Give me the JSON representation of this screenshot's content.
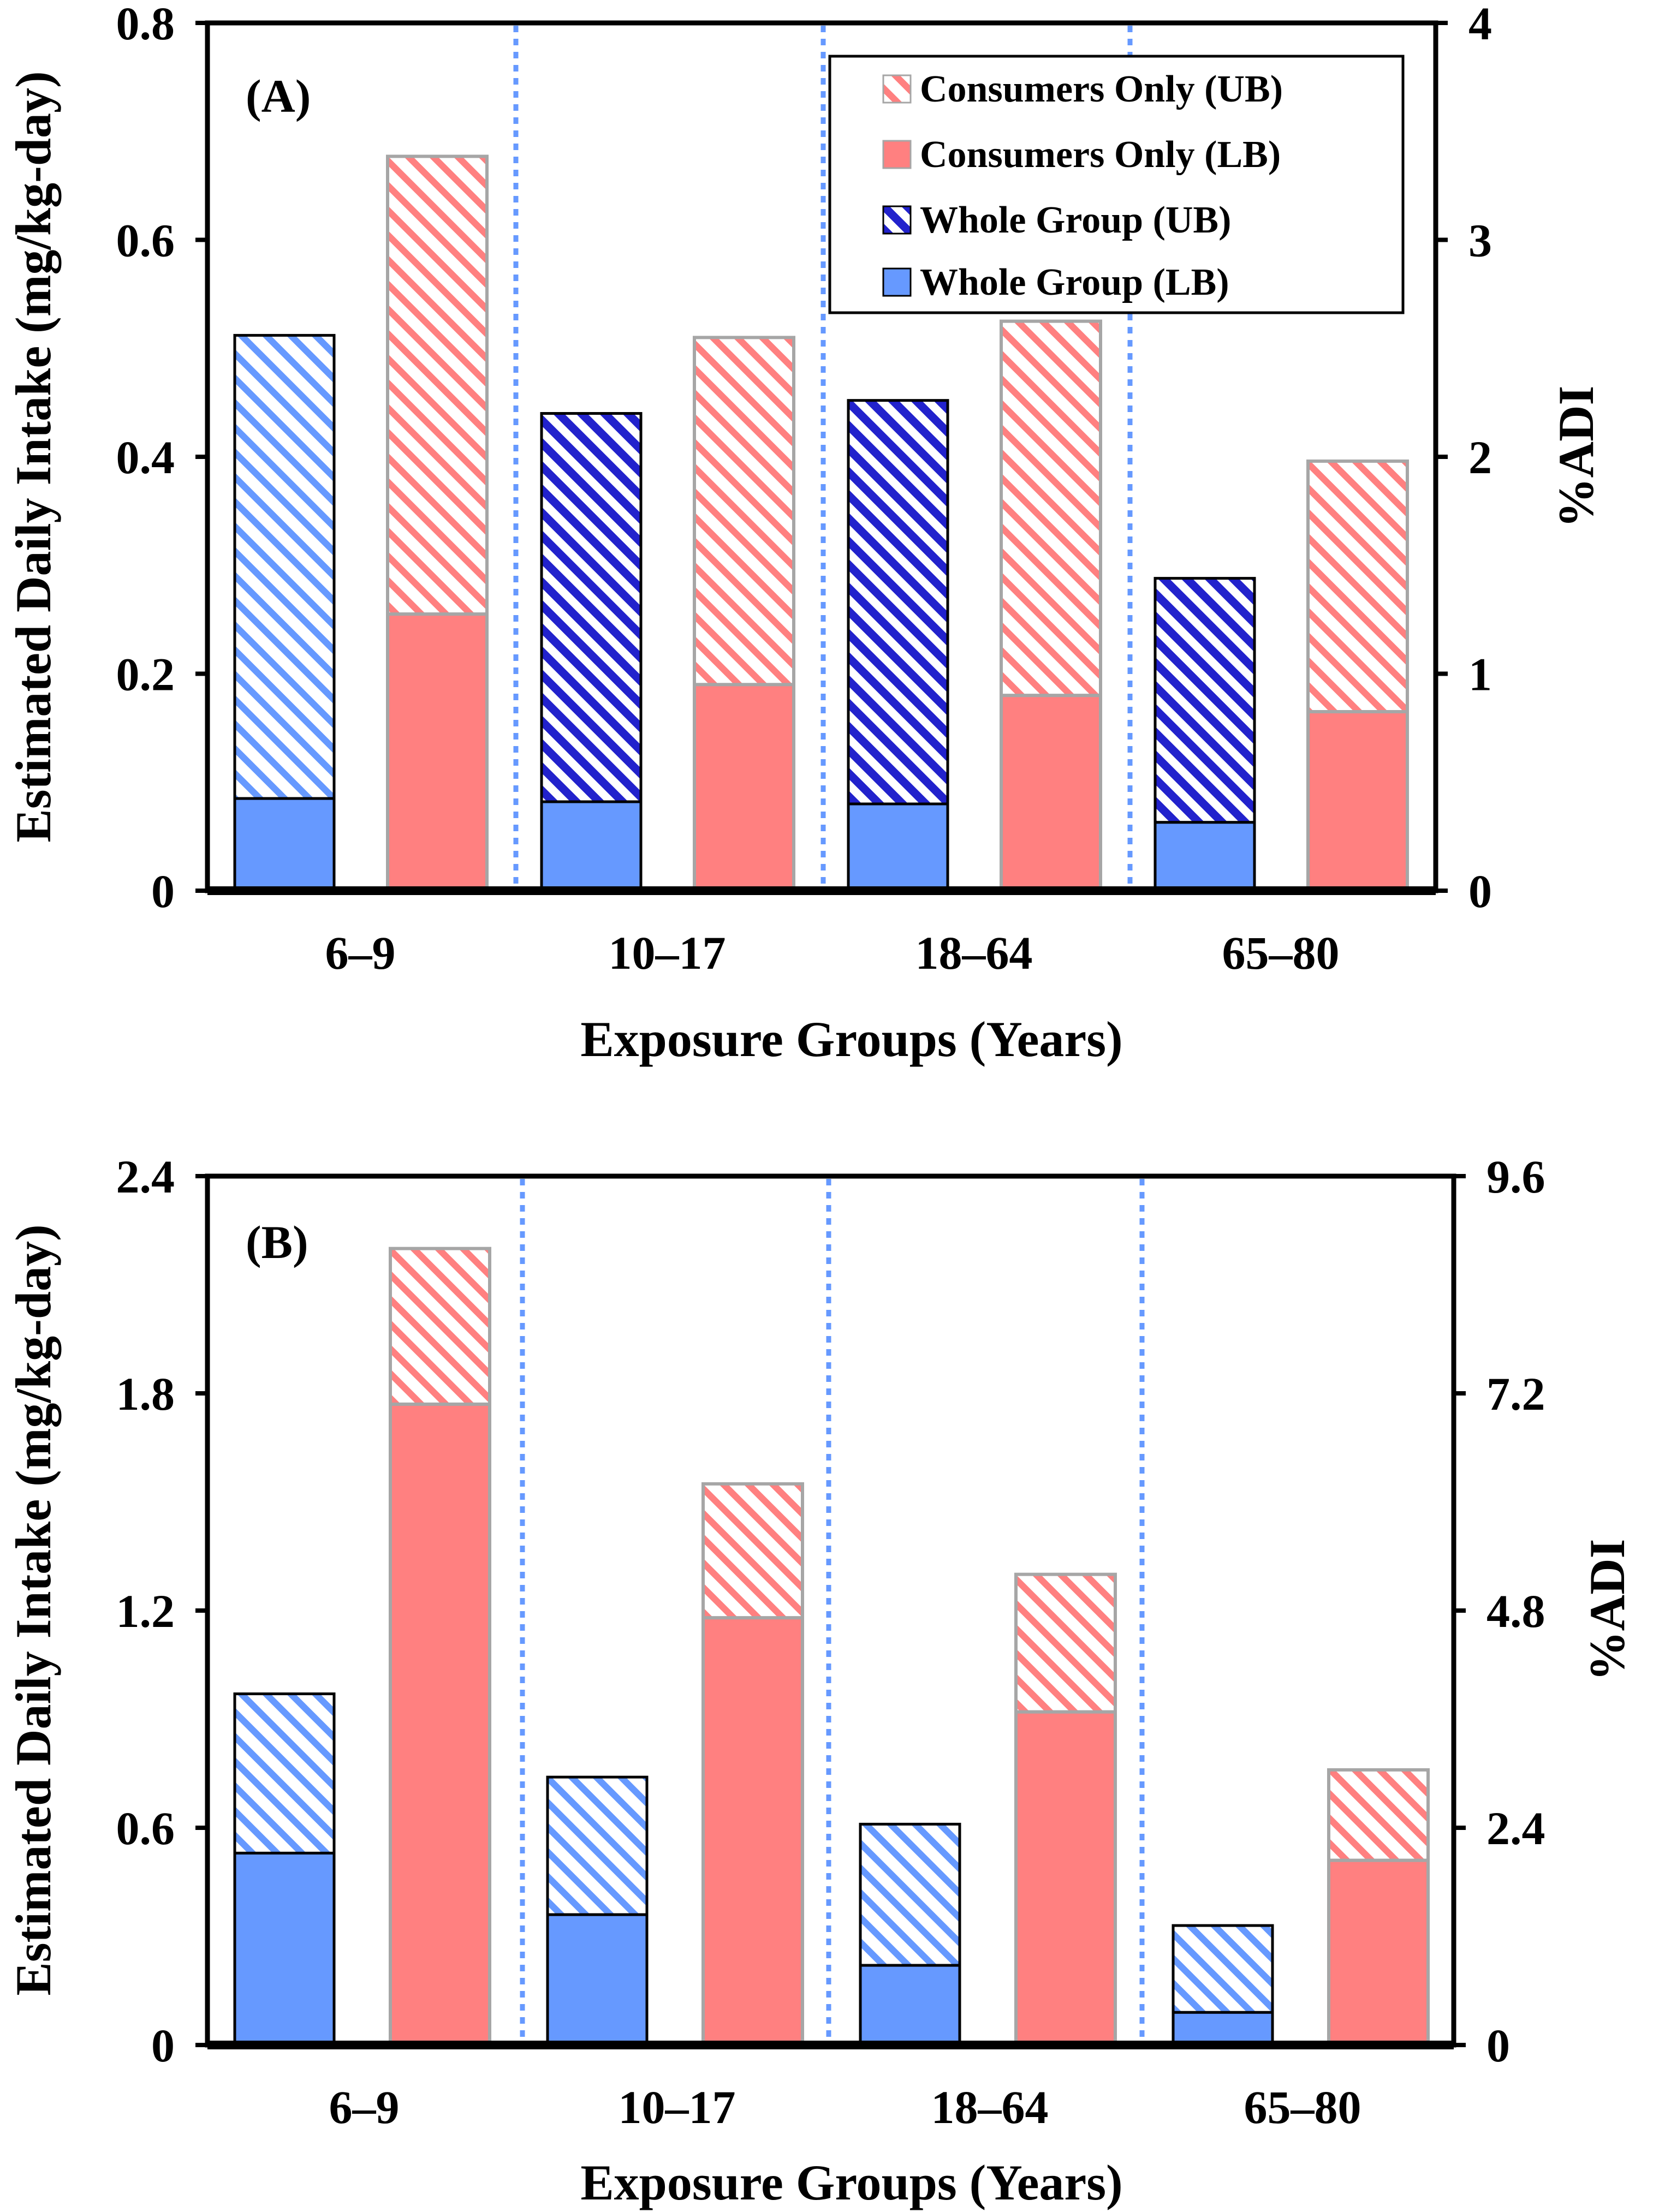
{
  "colors": {
    "whole_group": "#6699ff",
    "whole_group_ub_stripe": "#2222cc",
    "consumers": "#ff8080",
    "bar_edge_whole": "#000000",
    "bar_edge_consumers": "#a6a6a6",
    "divider": "#6699ff"
  },
  "legend": [
    {
      "key": "cons_ub",
      "label": "Consumers Only (UB)"
    },
    {
      "key": "cons_lb",
      "label": "Consumers Only (LB)"
    },
    {
      "key": "whole_ub",
      "label": "Whole Group (UB)"
    },
    {
      "key": "whole_lb",
      "label": "Whole Group (LB)"
    }
  ],
  "chart_data": [
    {
      "type": "bar",
      "panel_label": "(A)",
      "categories": [
        "6–9",
        "10–17",
        "18–64",
        "65–80"
      ],
      "xlabel": "Exposure Groups (Years)",
      "ylabel": "Estimated Daily Intake (mg/kg-day)",
      "y2label": "%ADI",
      "ylim": [
        0,
        0.8
      ],
      "y2lim": [
        0,
        4
      ],
      "yticks": [
        "0",
        "0.2",
        "0.4",
        "0.6",
        "0.8"
      ],
      "y2ticks": [
        "0",
        "1",
        "2",
        "3",
        "4"
      ],
      "legend_position": "top-right",
      "series": [
        {
          "name": "Whole Group (LB)",
          "values": [
            0.085,
            0.082,
            0.08,
            0.063
          ]
        },
        {
          "name": "Whole Group (UB)",
          "values": [
            0.512,
            0.44,
            0.452,
            0.288
          ]
        },
        {
          "name": "Consumers Only (LB)",
          "values": [
            0.255,
            0.19,
            0.18,
            0.165
          ]
        },
        {
          "name": "Consumers Only (UB)",
          "values": [
            0.677,
            0.51,
            0.525,
            0.396
          ]
        }
      ],
      "whole_ub_style": [
        "light",
        "dark",
        "dark",
        "dark"
      ]
    },
    {
      "type": "bar",
      "panel_label": "(B)",
      "categories": [
        "6–9",
        "10–17",
        "18–64",
        "65–80"
      ],
      "xlabel": "Exposure Groups (Years)",
      "ylabel": "Estimated Daily Intake (mg/kg-day)",
      "y2label": "%ADI",
      "ylim": [
        0,
        2.4
      ],
      "y2lim": [
        0,
        9.6
      ],
      "yticks": [
        "0",
        "0.6",
        "1.2",
        "1.8",
        "2.4"
      ],
      "y2ticks": [
        "0",
        "2.4",
        "4.8",
        "7.2",
        "9.6"
      ],
      "legend_position": "none",
      "series": [
        {
          "name": "Whole Group (LB)",
          "values": [
            0.53,
            0.36,
            0.22,
            0.09
          ]
        },
        {
          "name": "Whole Group (UB)",
          "values": [
            0.97,
            0.74,
            0.61,
            0.33
          ]
        },
        {
          "name": "Consumers Only (LB)",
          "values": [
            1.77,
            1.18,
            0.92,
            0.51
          ]
        },
        {
          "name": "Consumers Only (UB)",
          "values": [
            2.2,
            1.55,
            1.3,
            0.76
          ]
        }
      ],
      "whole_ub_style": [
        "light",
        "light",
        "light",
        "light"
      ]
    }
  ]
}
